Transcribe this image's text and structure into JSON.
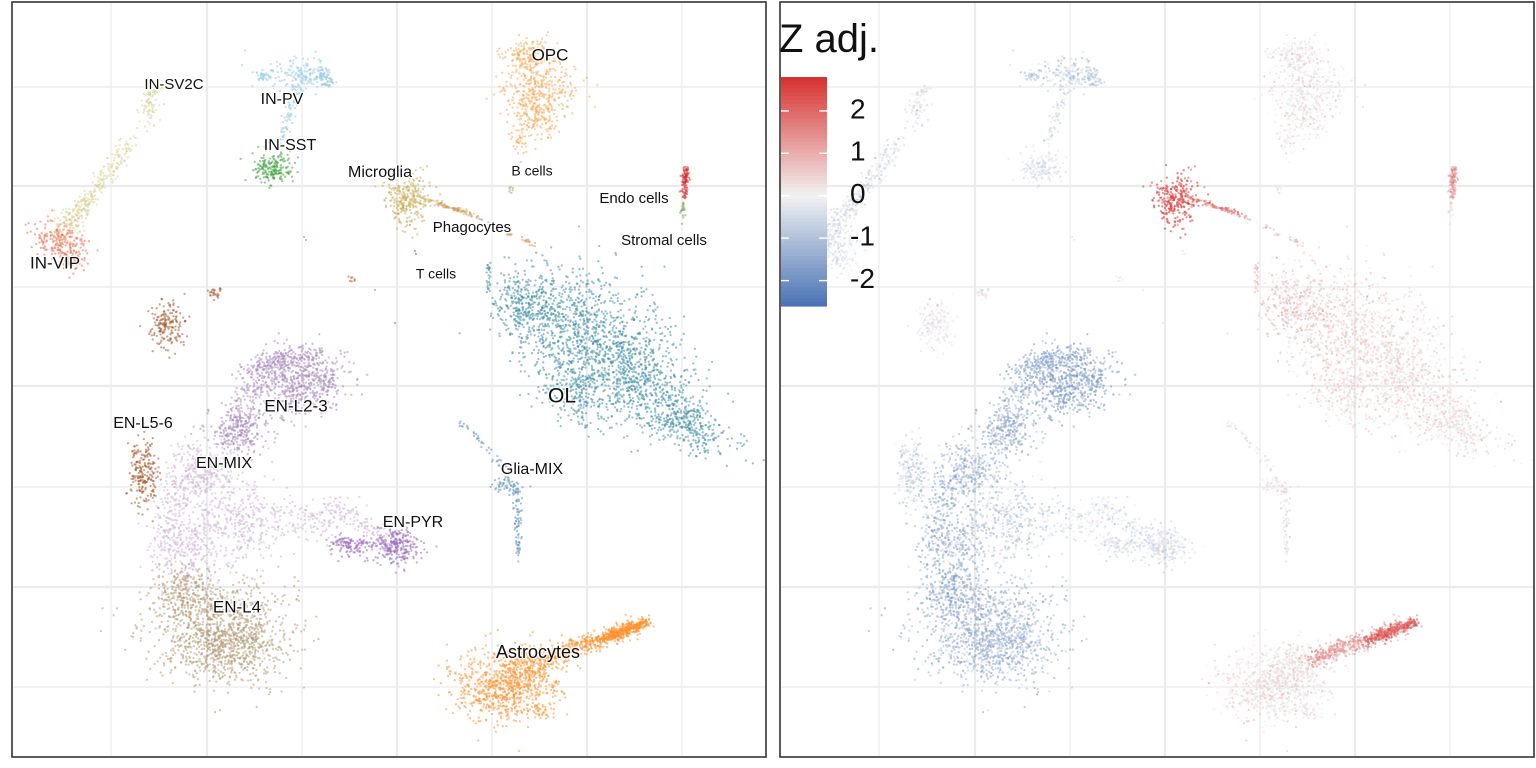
{
  "chart_data": [
    {
      "type": "scatter",
      "panel": "left",
      "description_of_encoding": "UMAP embedding colored by cell type",
      "grid": true,
      "legend": "none",
      "clusters": [
        {
          "label": "OPC",
          "color": "#F6A957"
        },
        {
          "label": "IN-SV2C",
          "color": "#D9D39A"
        },
        {
          "label": "IN-PV",
          "color": "#93CBE3"
        },
        {
          "label": "IN-SST",
          "color": "#3CA23C"
        },
        {
          "label": "Microglia",
          "color": "#C9AE5A"
        },
        {
          "label": "B cells",
          "color": "#86B65E"
        },
        {
          "label": "Endo cells",
          "color": "#D7302E"
        },
        {
          "label": "Phagocytes",
          "color": "#E08A55"
        },
        {
          "label": "Stromal cells",
          "color": "#7FA855"
        },
        {
          "label": "IN-VIP",
          "color": "#EE6E50"
        },
        {
          "label": "T cells",
          "color": "#D94040"
        },
        {
          "label": "OL",
          "color": "#3F8EA8"
        },
        {
          "label": "EN-L2-3",
          "color": "#A98BC0"
        },
        {
          "label": "EN-L5-6",
          "color": "#A8582A"
        },
        {
          "label": "EN-MIX",
          "color": "#CDB6D6"
        },
        {
          "label": "Glia-MIX",
          "color": "#5A93C2"
        },
        {
          "label": "EN-PYR",
          "color": "#9A6CBF"
        },
        {
          "label": "EN-L4",
          "color": "#B29A78"
        },
        {
          "label": "Astrocytes",
          "color": "#FB9230"
        }
      ]
    },
    {
      "type": "scatter",
      "panel": "right",
      "grid": true,
      "legend": "top-left",
      "legend_title": "Z adj.",
      "colorscale": {
        "low": "#4A72B5",
        "mid": "#F2F2F2",
        "high": "#D7302E",
        "range": [
          -2.6,
          2.8
        ],
        "ticks": [
          "2",
          "1",
          "0",
          "-1",
          "-2"
        ]
      }
    }
  ]
}
